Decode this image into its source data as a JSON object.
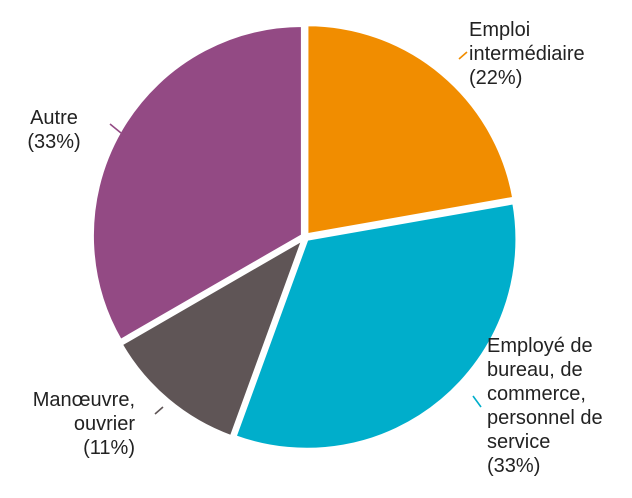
{
  "chart_data": {
    "type": "pie",
    "title": "",
    "legend": "none",
    "slices": [
      {
        "lines": [
          "Emploi",
          "intermédiaire",
          "(22%)"
        ],
        "value": 22,
        "color": "#F18D00"
      },
      {
        "lines": [
          "Employé de",
          "bureau, de",
          "commerce,",
          "personnel de",
          "service",
          "(33%)"
        ],
        "value": 33,
        "color": "#00AECB"
      },
      {
        "lines": [
          "Manœuvre,",
          "ouvrier",
          "(11%)"
        ],
        "value": 11,
        "color": "#5F5556"
      },
      {
        "lines": [
          "Autre",
          "(33%)"
        ],
        "value": 33,
        "color": "#934A84"
      }
    ]
  }
}
